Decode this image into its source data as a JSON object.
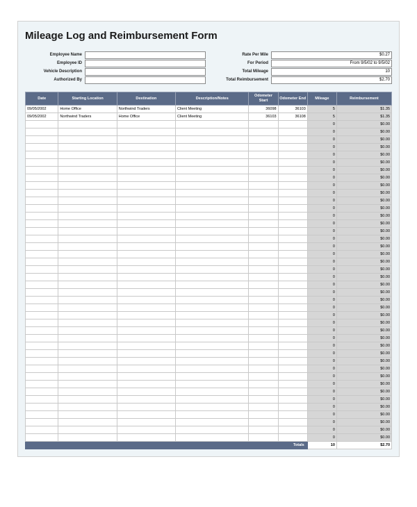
{
  "title": "Mileage Log and Reimbursement Form",
  "header_left": {
    "labels": [
      "Employee Name",
      "Employee ID",
      "Vehicle Description",
      "Authorized By"
    ],
    "values": [
      "",
      "",
      "",
      ""
    ]
  },
  "header_right": {
    "labels": [
      "Rate Per Mile",
      "For Period",
      "Total Mileage",
      "Total Reimbursement"
    ],
    "values": [
      "$0.27",
      "From 9/5/02 to 9/5/02",
      "10",
      "$2.70"
    ]
  },
  "columns": [
    "Date",
    "Starting Location",
    "Destination",
    "Description/Notes",
    "Odometer Start",
    "Odometer End",
    "Mileage",
    "Reimbursement"
  ],
  "rows": [
    {
      "date": "09/05/2002",
      "start": "Home Office",
      "dest": "Northwind Traders",
      "desc": "Client Meeting",
      "odo_s": "36098",
      "odo_e": "36103",
      "mileage": "5",
      "reimb": "$1.35"
    },
    {
      "date": "09/05/2002",
      "start": "Northwind Traders",
      "dest": "Home Office",
      "desc": "Client Meeting",
      "odo_s": "36103",
      "odo_e": "36108",
      "mileage": "5",
      "reimb": "$1.35"
    }
  ],
  "empty_row_count": 42,
  "empty_mileage": "0",
  "empty_reimb": "$0.00",
  "totals": {
    "label": "Totals",
    "mileage": "10",
    "reimb": "$2.70"
  },
  "colors": {
    "page_bg": "#eef4f7",
    "header_bg": "#5b6b88",
    "header_fg": "#ffffff",
    "shade_bg": "#d6d6d6",
    "grid": "#c8c8c8"
  },
  "fonts": {
    "title_size_pt": 15,
    "label_size_pt": 6,
    "cell_size_pt": 5.5
  }
}
